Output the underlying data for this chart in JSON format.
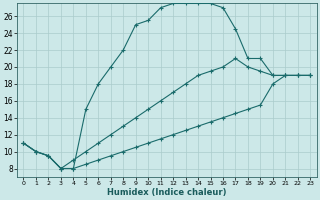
{
  "xlabel": "Humidex (Indice chaleur)",
  "bg_color": "#cce8e8",
  "grid_color": "#aacccc",
  "line_color": "#1a6b6b",
  "xlim": [
    -0.5,
    23.5
  ],
  "ylim": [
    7,
    27.5
  ],
  "xticks": [
    0,
    1,
    2,
    3,
    4,
    5,
    6,
    7,
    8,
    9,
    10,
    11,
    12,
    13,
    14,
    15,
    16,
    17,
    18,
    19,
    20,
    21,
    22,
    23
  ],
  "yticks": [
    8,
    10,
    12,
    14,
    16,
    18,
    20,
    22,
    24,
    26
  ],
  "curve1_x": [
    0,
    1,
    2,
    3,
    4,
    5,
    6,
    7,
    8,
    9,
    10,
    11,
    12,
    13,
    14,
    15,
    16,
    17,
    18,
    19,
    20,
    21,
    22,
    23
  ],
  "curve1_y": [
    11,
    10,
    9.5,
    8,
    8,
    15,
    18,
    20,
    22,
    25,
    25.5,
    27,
    27.5,
    27.5,
    27.5,
    27.5,
    27,
    24.5,
    21,
    21,
    19,
    19,
    19,
    19
  ],
  "curve2_x": [
    0,
    1,
    2,
    3,
    4,
    5,
    6,
    7,
    8,
    9,
    10,
    11,
    12,
    13,
    14,
    15,
    16,
    17,
    18,
    19,
    20,
    21,
    22,
    23
  ],
  "curve2_y": [
    11,
    10,
    9.5,
    8,
    9,
    10,
    11,
    12,
    13,
    14,
    15,
    16,
    17,
    18,
    19,
    19.5,
    20,
    21,
    20,
    19.5,
    19,
    19,
    19,
    19
  ],
  "curve3_x": [
    0,
    1,
    2,
    3,
    4,
    5,
    6,
    7,
    8,
    9,
    10,
    11,
    12,
    13,
    14,
    15,
    16,
    17,
    18,
    19,
    20,
    21,
    22,
    23
  ],
  "curve3_y": [
    11,
    10,
    9.5,
    8,
    8,
    8.5,
    9,
    9.5,
    10,
    10.5,
    11,
    11.5,
    12,
    12.5,
    13,
    13.5,
    14,
    14.5,
    15,
    15.5,
    18,
    19,
    19,
    19
  ]
}
